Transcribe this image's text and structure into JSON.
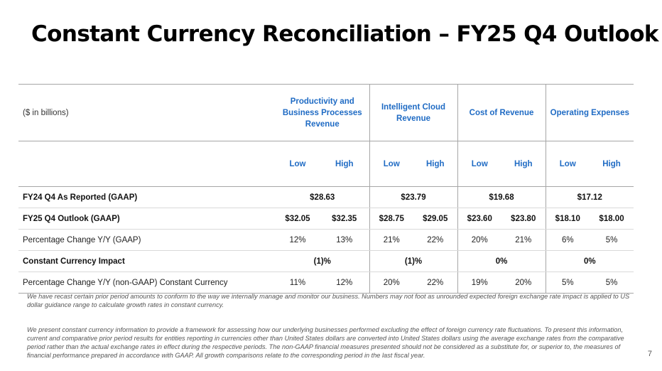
{
  "title": "Constant Currency Reconciliation – FY25 Q4 Outlook",
  "units_label": "($ in billions)",
  "columns": [
    {
      "label": "Productivity and Business Processes Revenue"
    },
    {
      "label": "Intelligent Cloud Revenue"
    },
    {
      "label": "Cost of Revenue"
    },
    {
      "label": "Operating Expenses"
    }
  ],
  "low_label": "Low",
  "high_label": "High",
  "rows": [
    {
      "label": "FY24 Q4 As Reported (GAAP)",
      "bold": true,
      "merged": true,
      "values": [
        "$28.63",
        "$23.79",
        "$19.68",
        "$17.12"
      ]
    },
    {
      "label": "FY25 Q4 Outlook (GAAP)",
      "bold": true,
      "merged": false,
      "values": [
        "$32.05",
        "$32.35",
        "$28.75",
        "$29.05",
        "$23.60",
        "$23.80",
        "$18.10",
        "$18.00"
      ]
    },
    {
      "label": "Percentage Change Y/Y (GAAP)",
      "bold": false,
      "merged": false,
      "values": [
        "12%",
        "13%",
        "21%",
        "22%",
        "20%",
        "21%",
        "6%",
        "5%"
      ]
    },
    {
      "label": "Constant Currency Impact",
      "bold": true,
      "merged": true,
      "values": [
        "(1)%",
        "(1)%",
        "0%",
        "0%"
      ]
    },
    {
      "label": "Percentage Change Y/Y (non-GAAP) Constant Currency",
      "bold": false,
      "merged": false,
      "values": [
        "11%",
        "12%",
        "20%",
        "22%",
        "19%",
        "20%",
        "5%",
        "5%"
      ]
    }
  ],
  "note1": "We have recast certain prior period amounts to conform to the way we internally manage and monitor our business. Numbers may not foot as unrounded expected foreign exchange rate impact is applied to US dollar guidance range to calculate growth rates in constant currency.",
  "note2": "We present constant currency information to provide a framework for assessing how our underlying businesses performed excluding the effect of foreign currency rate fluctuations. To present this information, current and comparative prior period results for entities reporting in currencies other than United States dollars are converted into United States dollars using the average exchange rates from the comparative period rather than the actual exchange rates in effect during the respective periods. The non-GAAP financial measures presented should not be considered as a substitute for, or superior to, the measures of financial performance prepared in accordance with GAAP. All growth comparisons relate to the corresponding period in the last fiscal year.",
  "page_number": "7"
}
